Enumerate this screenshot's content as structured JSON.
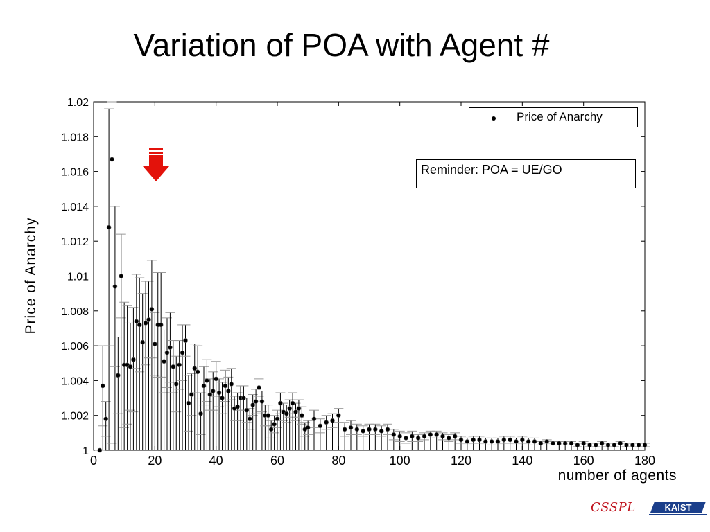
{
  "slide": {
    "title": "Variation of POA with Agent #",
    "reminder": "Reminder: POA = UE/GO",
    "logos": {
      "left": "CSSPL",
      "right": "KAIST"
    },
    "arrow_color": "#e3120b",
    "arrow_icon": "down-arrow-icon"
  },
  "chart_data": {
    "type": "scatter",
    "xlabel": "number of agents",
    "ylabel": "Price of Anarchy",
    "xlim": [
      0,
      180
    ],
    "ylim": [
      1.0,
      1.02
    ],
    "xticks": [
      "0",
      "20",
      "40",
      "60",
      "80",
      "100",
      "120",
      "140",
      "160",
      "180"
    ],
    "yticks": [
      "1",
      "1.002",
      "1.004",
      "1.006",
      "1.008",
      "1.01",
      "1.012",
      "1.014",
      "1.016",
      "1.018",
      "1.02"
    ],
    "legend": {
      "label": "Price of Anarchy",
      "position": "top-right"
    },
    "grid": false,
    "error_bars": true,
    "series": [
      {
        "name": "Price of Anarchy",
        "x": [
          2,
          3,
          4,
          5,
          6,
          7,
          8,
          9,
          10,
          11,
          12,
          13,
          14,
          15,
          16,
          17,
          18,
          19,
          20,
          21,
          22,
          23,
          24,
          25,
          26,
          27,
          28,
          29,
          30,
          31,
          32,
          33,
          34,
          35,
          36,
          37,
          38,
          39,
          40,
          41,
          42,
          43,
          44,
          45,
          46,
          47,
          48,
          49,
          50,
          51,
          52,
          53,
          54,
          55,
          56,
          57,
          58,
          59,
          60,
          61,
          62,
          63,
          64,
          65,
          66,
          67,
          68,
          69,
          70,
          72,
          74,
          76,
          78,
          80,
          82,
          84,
          86,
          88,
          90,
          92,
          94,
          96,
          98,
          100,
          102,
          104,
          106,
          108,
          110,
          112,
          114,
          116,
          118,
          120,
          122,
          124,
          126,
          128,
          130,
          132,
          134,
          136,
          138,
          140,
          142,
          144,
          146,
          148,
          150,
          152,
          154,
          156,
          158,
          160,
          162,
          164,
          166,
          168,
          170,
          172,
          174,
          176,
          178,
          180
        ],
        "y": [
          1.0,
          1.0037,
          1.0018,
          1.0128,
          1.0167,
          1.0094,
          1.0043,
          1.01,
          1.0049,
          1.0049,
          1.0048,
          1.0052,
          1.0074,
          1.0072,
          1.0062,
          1.0073,
          1.0075,
          1.0081,
          1.0061,
          1.0072,
          1.0072,
          1.0051,
          1.0056,
          1.0059,
          1.0048,
          1.0038,
          1.0049,
          1.0056,
          1.0063,
          1.0027,
          1.0032,
          1.0047,
          1.0045,
          1.0021,
          1.0037,
          1.004,
          1.0032,
          1.0034,
          1.0041,
          1.0033,
          1.003,
          1.0037,
          1.0034,
          1.0038,
          1.0024,
          1.0025,
          1.003,
          1.003,
          1.0023,
          1.0018,
          1.0026,
          1.0028,
          1.0036,
          1.0028,
          1.002,
          1.002,
          1.0012,
          1.0015,
          1.0018,
          1.0027,
          1.0022,
          1.0021,
          1.0024,
          1.0027,
          1.0022,
          1.0024,
          1.002,
          1.0012,
          1.0013,
          1.0018,
          1.0014,
          1.0016,
          1.0017,
          1.002,
          1.0012,
          1.0013,
          1.0012,
          1.0011,
          1.0012,
          1.0012,
          1.0011,
          1.0012,
          1.0009,
          1.0008,
          1.0007,
          1.0008,
          1.0007,
          1.0008,
          1.0009,
          1.0009,
          1.0008,
          1.0007,
          1.0008,
          1.0006,
          1.0005,
          1.0006,
          1.0006,
          1.0005,
          1.0005,
          1.0005,
          1.0006,
          1.0006,
          1.0005,
          1.0006,
          1.0005,
          1.0005,
          1.0004,
          1.0005,
          1.0004,
          1.0004,
          1.0004,
          1.0004,
          1.0003,
          1.0004,
          1.0003,
          1.0003,
          1.0004,
          1.0003,
          1.0003,
          1.0004,
          1.0003,
          1.0003,
          1.0003,
          1.0003
        ],
        "err": [
          0.0,
          0.0023,
          0.001,
          0.0068,
          0.0163,
          0.0046,
          0.0022,
          0.0024,
          0.0036,
          0.0034,
          0.0025,
          0.003,
          0.0027,
          0.0027,
          0.0028,
          0.0024,
          0.0022,
          0.0028,
          0.0018,
          0.003,
          0.003,
          0.0018,
          0.002,
          0.002,
          0.0015,
          0.0016,
          0.0014,
          0.0016,
          0.0009,
          0.0016,
          0.0012,
          0.0014,
          0.0015,
          0.0012,
          0.0011,
          0.0012,
          0.0009,
          0.0011,
          0.001,
          0.0008,
          0.0009,
          0.0009,
          0.0008,
          0.0009,
          0.0007,
          0.0008,
          0.0007,
          0.0007,
          0.0007,
          0.0006,
          0.0006,
          0.0007,
          0.0005,
          0.0006,
          0.0006,
          0.0006,
          0.0005,
          0.0005,
          0.0005,
          0.0006,
          0.0005,
          0.0005,
          0.0005,
          0.0006,
          0.0005,
          0.0005,
          0.0005,
          0.0004,
          0.0004,
          0.0005,
          0.0004,
          0.0004,
          0.0004,
          0.0004,
          0.0004,
          0.0004,
          0.0003,
          0.0003,
          0.0003,
          0.0003,
          0.0003,
          0.0003,
          0.0003,
          0.0003,
          0.0003,
          0.0003,
          0.0002,
          0.0002,
          0.0002,
          0.0002,
          0.0002,
          0.0002,
          0.0002,
          0.0002,
          0.0002,
          0.0002,
          0.0002,
          0.0002,
          0.0002,
          0.0002,
          0.0002,
          0.0002,
          0.0002,
          0.0002,
          0.0002,
          0.0002,
          0.0001,
          0.0001,
          0.0001,
          0.0001,
          0.0001,
          0.0001,
          0.0001,
          0.0001,
          0.0001,
          0.0001,
          0.0001,
          0.0001,
          0.0001,
          0.0001,
          0.0001,
          0.0001,
          0.0001,
          0.0001
        ]
      }
    ]
  }
}
